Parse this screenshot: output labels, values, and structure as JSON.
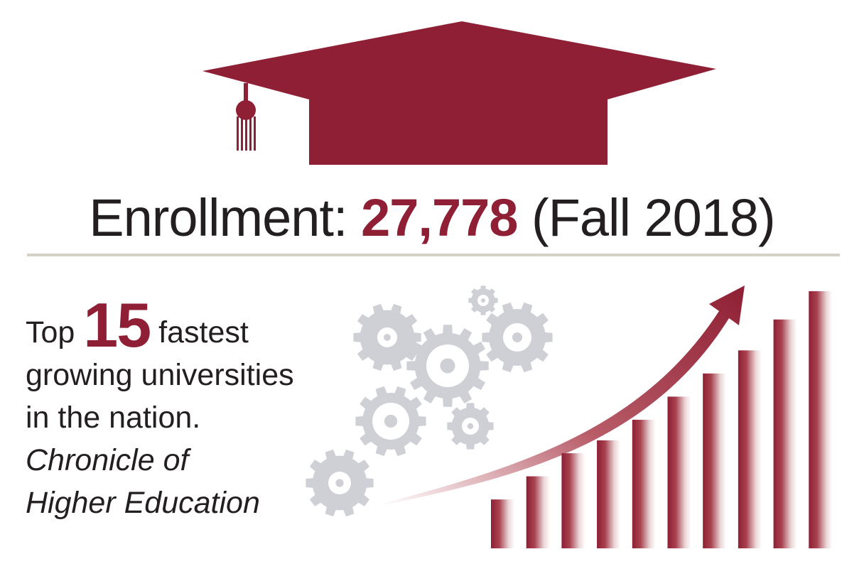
{
  "colors": {
    "accent": "#8e1f34",
    "text": "#231f20",
    "gear": "#cfd0d6",
    "rule": "#d6d1c6"
  },
  "icons": [
    "graduation-cap-icon",
    "gears-icon",
    "rising-arrow-icon",
    "growth-bars-icon"
  ],
  "headline": {
    "label": "Enrollment:",
    "value": "27,778",
    "term": "(Fall 2018)"
  },
  "ranking": {
    "prefix": "Top",
    "rank": "15",
    "suffix": "fastest",
    "line2": "growing universities",
    "line3": "in the nation.",
    "source_line1": "Chronicle of",
    "source_line2": "Higher Education"
  },
  "growth_bars": {
    "count": 10,
    "relative_heights": [
      0.19,
      0.28,
      0.37,
      0.42,
      0.5,
      0.59,
      0.68,
      0.77,
      0.89,
      1.0
    ]
  }
}
